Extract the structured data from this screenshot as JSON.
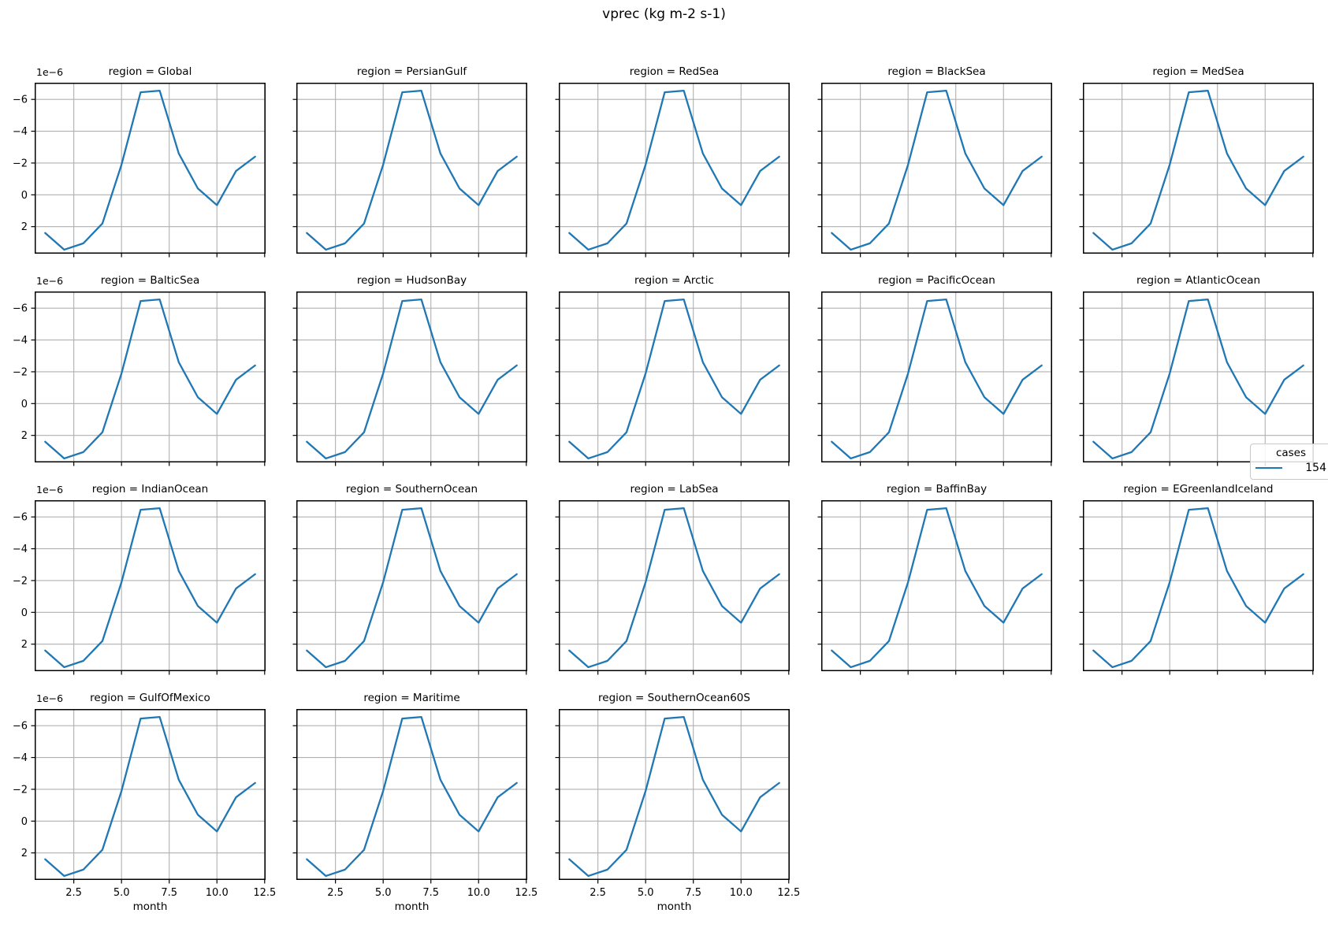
{
  "figure": {
    "background": "#ffffff"
  },
  "chart_data": {
    "type": "line",
    "title": "vprec (kg m-2 s-1)",
    "facet_field": "region",
    "facet_title_prefix": "region = ",
    "facets": [
      "Global",
      "PersianGulf",
      "RedSea",
      "BlackSea",
      "MedSea",
      "BalticSea",
      "HudsonBay",
      "Arctic",
      "PacificOcean",
      "AtlanticOcean",
      "IndianOcean",
      "SouthernOcean",
      "LabSea",
      "BaffinBay",
      "EGreenlandIceland",
      "GulfOfMexico",
      "Maritime",
      "SouthernOcean60S"
    ],
    "x": [
      1,
      2,
      3,
      4,
      5,
      6,
      7,
      8,
      9,
      10,
      11,
      12
    ],
    "xlabel": "month",
    "xticks": [
      2.5,
      5.0,
      7.5,
      10.0,
      12.5
    ],
    "xtick_labels": [
      "2.5",
      "5.0",
      "7.5",
      "10.0",
      "12.5"
    ],
    "xlim": [
      0.45,
      12.55
    ],
    "yticks": [
      -6,
      -4,
      -2,
      0,
      2
    ],
    "ytick_labels": [
      "−6",
      "−4",
      "−2",
      "0",
      "2"
    ],
    "y_offset_label": "1e−6",
    "ylim": {
      "top": -7.05,
      "bottom": 3.7
    },
    "y_axis_inverted": true,
    "values_unit_scale": "1e-6",
    "series": [
      {
        "name": "154",
        "color": "#1f77b4",
        "values": [
          2.4,
          3.45,
          3.05,
          1.8,
          -1.9,
          -6.45,
          -6.55,
          -2.6,
          -0.4,
          0.65,
          -1.5,
          -2.4
        ]
      }
    ],
    "legend": {
      "title": "cases",
      "items": [
        {
          "label": "154",
          "color": "#1f77b4"
        }
      ]
    },
    "grid": true,
    "grid_color": "#b0b0b0",
    "frame_color": "#000000",
    "line_width": 2.3
  }
}
